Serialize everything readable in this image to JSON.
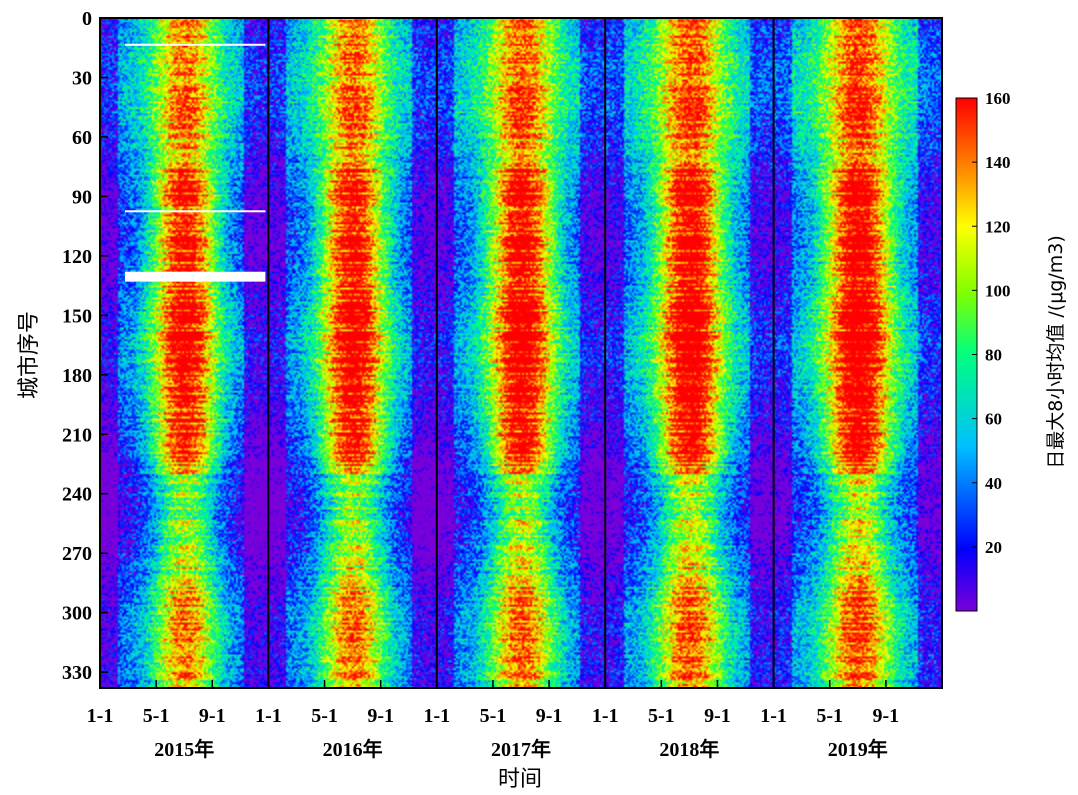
{
  "chart_data": {
    "type": "heatmap",
    "title": "",
    "xlabel": "时间",
    "ylabel": "城市序号",
    "colorbar_label": "日最大8小时均值 /(μg/m3)",
    "y_range": [
      0,
      338
    ],
    "y_ticks": [
      0,
      30,
      60,
      90,
      120,
      150,
      180,
      210,
      240,
      270,
      300,
      330
    ],
    "x_tick_labels": [
      "1-1",
      "5-1",
      "9-1",
      "1-1",
      "5-1",
      "9-1",
      "1-1",
      "5-1",
      "9-1",
      "1-1",
      "5-1",
      "9-1",
      "1-1",
      "5-1",
      "9-1"
    ],
    "years": [
      "2015年",
      "2016年",
      "2017年",
      "2018年",
      "2019年"
    ],
    "year_boundaries": [
      "2016-01-01",
      "2017-01-01",
      "2018-01-01",
      "2019-01-01"
    ],
    "colorbar_ticks": [
      20,
      40,
      60,
      80,
      100,
      120,
      140,
      160
    ],
    "colorbar_range": [
      0,
      160
    ],
    "colormap": [
      "#7a00d9",
      "#0000ff",
      "#00bfff",
      "#00ff7f",
      "#7fff00",
      "#ffff00",
      "#ff8000",
      "#ff0000"
    ],
    "seasonal_pattern": {
      "summer_peak_months": [
        5,
        6,
        7,
        8,
        9
      ],
      "winter_low_months": [
        11,
        12,
        1,
        2
      ],
      "peak_value": 160,
      "low_value": 30
    },
    "missing_city_rows": [
      [
        13,
        14
      ],
      [
        97,
        98
      ],
      [
        128,
        133
      ]
    ],
    "missing_year": "2015年"
  }
}
